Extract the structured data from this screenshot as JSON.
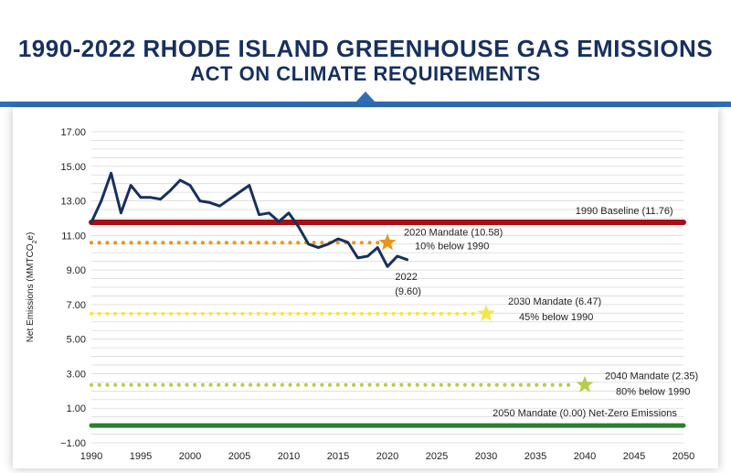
{
  "header": {
    "title_line1": "1990-2022 RHODE ISLAND GREENHOUSE GAS EMISSIONS",
    "title_line2": "ACT ON CLIMATE REQUIREMENTS"
  },
  "colors": {
    "title": "#17305e",
    "accent_bar": "#2f6fb7",
    "emissions_line": "#17305e",
    "baseline": "#a50f15",
    "mandate_2020": "#e8961e",
    "mandate_2030": "#f2e64a",
    "mandate_2040": "#b6cc4a",
    "mandate_2050": "#2e7d32",
    "grid": "#d9d9d9"
  },
  "chart_data": {
    "type": "line",
    "title": "1990-2022 RHODE ISLAND GREENHOUSE GAS EMISSIONS ACT ON CLIMATE REQUIREMENTS",
    "ylabel": "Net Emissions (MMTCO",
    "ylabel_sub": "2",
    "ylabel_end": "e)",
    "xlabel": "",
    "xlim": [
      1990,
      2050
    ],
    "ylim": [
      -1.0,
      17.0
    ],
    "grid": true,
    "x_ticks": [
      1990,
      1995,
      2000,
      2005,
      2010,
      2015,
      2020,
      2025,
      2030,
      2035,
      2040,
      2045,
      2050
    ],
    "y_ticks": [
      -1.0,
      1.0,
      3.0,
      5.0,
      7.0,
      9.0,
      11.0,
      13.0,
      15.0,
      17.0
    ],
    "y_tick_labels": [
      "−1.00",
      "1.00",
      "3.00",
      "5.00",
      "7.00",
      "9.00",
      "11.00",
      "13.00",
      "15.00",
      "17.00"
    ],
    "x_tick_labels": [
      "1990",
      "1995",
      "2000",
      "2005",
      "2010",
      "2015",
      "2020",
      "2025",
      "2030",
      "2035",
      "2040",
      "2045",
      "2050"
    ],
    "series": [
      {
        "x": [
          1990,
          1991,
          1992,
          1993,
          1994,
          1995,
          1996,
          1997,
          1998,
          1999,
          2000,
          2001,
          2002,
          2003,
          2004,
          2005,
          2006,
          2007,
          2008,
          2009,
          2010,
          2011,
          2012,
          2013,
          2014,
          2015,
          2016,
          2017,
          2018,
          2019,
          2020,
          2021,
          2022
        ],
        "values": [
          11.76,
          13.0,
          14.6,
          12.3,
          13.9,
          13.2,
          13.2,
          13.1,
          13.6,
          14.2,
          13.9,
          13.0,
          12.9,
          12.7,
          13.1,
          13.5,
          13.9,
          12.2,
          12.3,
          11.8,
          12.3,
          11.5,
          10.5,
          10.3,
          10.5,
          10.8,
          10.6,
          9.7,
          9.8,
          10.3,
          9.2,
          9.8,
          9.6
        ]
      }
    ],
    "reference_lines": [
      {
        "label": "1990 Baseline (11.76)",
        "y": 11.76,
        "x_start": 1990,
        "x_end": 2050,
        "style": "solid"
      },
      {
        "label": "2050 Mandate (0.00) Net-Zero Emissions",
        "y": 0.0,
        "x_start": 1990,
        "x_end": 2050,
        "style": "solid"
      }
    ],
    "mandates": [
      {
        "label": "2020 Mandate (10.58)",
        "sublabel": "10% below 1990",
        "y": 10.58,
        "x_end": 2020
      },
      {
        "label": "2030 Mandate (6.47)",
        "sublabel": "45% below 1990",
        "y": 6.47,
        "x_end": 2030
      },
      {
        "label": "2040 Mandate (2.35)",
        "sublabel": "80% below 1990",
        "y": 2.35,
        "x_end": 2040
      }
    ],
    "annotations": [
      {
        "text": "2022",
        "x": 2022,
        "y": 9.6
      },
      {
        "text": "(9.60)",
        "x": 2022,
        "y": 9.6
      }
    ]
  }
}
